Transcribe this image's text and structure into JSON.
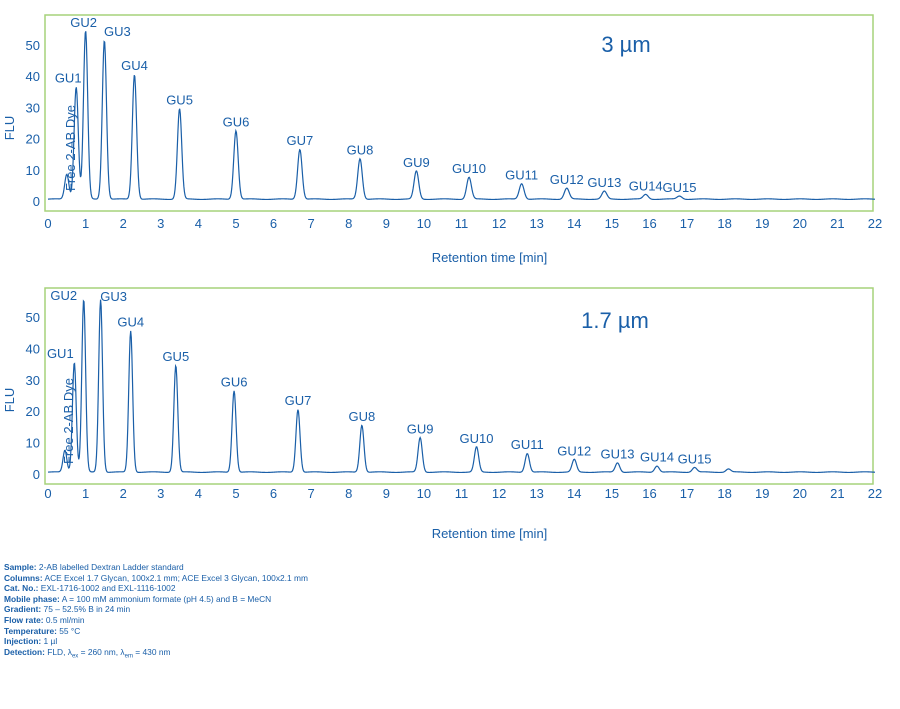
{
  "chart_data": [
    {
      "type": "line",
      "title": "3 µm",
      "xlabel": "Retention time [min]",
      "ylabel": "FLU",
      "xlim": [
        0,
        22
      ],
      "ylim": [
        0,
        55
      ],
      "xticks": [
        "0",
        "1",
        "2",
        "3",
        "4",
        "5",
        "6",
        "7",
        "8",
        "9",
        "10",
        "11",
        "12",
        "13",
        "14",
        "15",
        "16",
        "17",
        "18",
        "19",
        "20",
        "21",
        "22"
      ],
      "yticks": [
        "0",
        "10",
        "20",
        "30",
        "40",
        "50"
      ],
      "peaks": [
        {
          "label": "Free 2-AB Dye",
          "x": 0.5,
          "y": 8
        },
        {
          "label": "GU1",
          "x": 0.75,
          "y": 36
        },
        {
          "label": "GU2",
          "x": 1.0,
          "y": 54
        },
        {
          "label": "GU3",
          "x": 1.5,
          "y": 51
        },
        {
          "label": "GU4",
          "x": 2.3,
          "y": 40
        },
        {
          "label": "GU5",
          "x": 3.5,
          "y": 29
        },
        {
          "label": "GU6",
          "x": 5.0,
          "y": 22
        },
        {
          "label": "GU7",
          "x": 6.7,
          "y": 16
        },
        {
          "label": "GU8",
          "x": 8.3,
          "y": 13
        },
        {
          "label": "GU9",
          "x": 9.8,
          "y": 9
        },
        {
          "label": "GU10",
          "x": 11.2,
          "y": 7
        },
        {
          "label": "GU11",
          "x": 12.6,
          "y": 5
        },
        {
          "label": "GU12",
          "x": 13.8,
          "y": 3.5
        },
        {
          "label": "GU13",
          "x": 14.8,
          "y": 2.5
        },
        {
          "label": "GU14",
          "x": 15.9,
          "y": 1.5
        },
        {
          "label": "GU15",
          "x": 16.8,
          "y": 1
        }
      ]
    },
    {
      "type": "line",
      "title": "1.7 µm",
      "xlabel": "Retention time [min]",
      "ylabel": "FLU",
      "xlim": [
        0,
        22
      ],
      "ylim": [
        0,
        55
      ],
      "xticks": [
        "0",
        "1",
        "2",
        "3",
        "4",
        "5",
        "6",
        "7",
        "8",
        "9",
        "10",
        "11",
        "12",
        "13",
        "14",
        "15",
        "16",
        "17",
        "18",
        "19",
        "20",
        "21",
        "22"
      ],
      "yticks": [
        "0",
        "10",
        "20",
        "30",
        "40",
        "50"
      ],
      "peaks": [
        {
          "label": "Free 2-AB Dye",
          "x": 0.45,
          "y": 7
        },
        {
          "label": "GU1",
          "x": 0.7,
          "y": 35
        },
        {
          "label": "GU2",
          "x": 0.95,
          "y": 55
        },
        {
          "label": "GU3",
          "x": 1.4,
          "y": 55
        },
        {
          "label": "GU4",
          "x": 2.2,
          "y": 45
        },
        {
          "label": "GU5",
          "x": 3.4,
          "y": 34
        },
        {
          "label": "GU6",
          "x": 4.95,
          "y": 26
        },
        {
          "label": "GU7",
          "x": 6.65,
          "y": 20
        },
        {
          "label": "GU8",
          "x": 8.35,
          "y": 15
        },
        {
          "label": "GU9",
          "x": 9.9,
          "y": 11
        },
        {
          "label": "GU10",
          "x": 11.4,
          "y": 8
        },
        {
          "label": "GU11",
          "x": 12.75,
          "y": 6
        },
        {
          "label": "GU12",
          "x": 14.0,
          "y": 4
        },
        {
          "label": "GU13",
          "x": 15.15,
          "y": 3
        },
        {
          "label": "GU14",
          "x": 16.2,
          "y": 2
        },
        {
          "label": "GU15",
          "x": 17.2,
          "y": 1.5
        },
        {
          "label": "",
          "x": 18.1,
          "y": 1
        }
      ]
    }
  ],
  "notes": [
    {
      "label": "Sample:",
      "text": " 2-AB labelled Dextran Ladder standard"
    },
    {
      "label": "Columns:",
      "text": " ACE Excel 1.7 Glycan, 100x2.1 mm; ACE Excel 3 Glycan, 100x2.1 mm"
    },
    {
      "label": "Cat. No.:",
      "text": " EXL-1716-1002 and EXL-1116-1002"
    },
    {
      "label": "Mobile phase:",
      "text": " A = 100 mM ammonium formate (pH 4.5) and B = MeCN"
    },
    {
      "label": "Gradient:",
      "text": " 75 – 52.5% B in 24 min"
    },
    {
      "label": "Flow rate:",
      "text": " 0.5 ml/min"
    },
    {
      "label": "Temperature:",
      "text": " 55 °C"
    },
    {
      "label": "Injection:",
      "text": " 1 µl"
    }
  ],
  "detection": {
    "label": "Detection:",
    "text_before": " FLD, λ",
    "sub_ex": "ex",
    "text_mid": " = 260 nm, λ",
    "sub_em": "em",
    "text_after": " = 430 nm"
  },
  "colors": {
    "frame": "#a6d27a",
    "line": "#1a5fa8",
    "text": "#1a5fa8"
  }
}
